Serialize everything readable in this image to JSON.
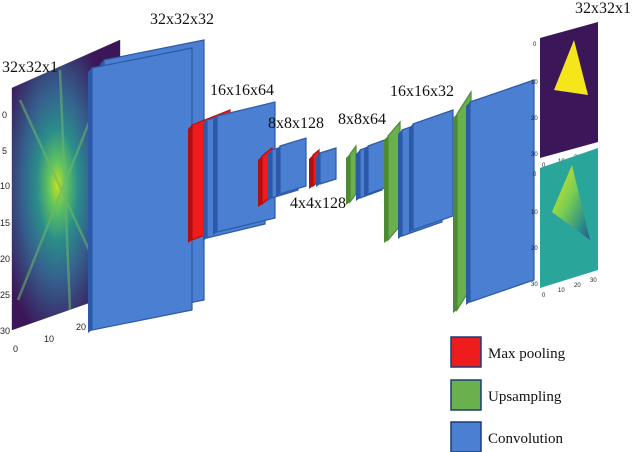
{
  "colors": {
    "maxpool": "#ee1c1c",
    "upsample": "#6ab04c",
    "conv": "#4a7fd1",
    "conv_edge": "#2d5aa8",
    "upsample_edge": "#4e8a36",
    "maxpool_edge": "#b30f0f",
    "heatmap_bg": "#3b1658",
    "triangle": "#f4e61b",
    "pred_bg": "#2aa59a"
  },
  "labels": {
    "input": "32x32x1",
    "enc1": "32x32x32",
    "enc2": "16x16x64",
    "enc3": "8x8x128",
    "bottleneck": "4x4x128",
    "dec1": "8x8x64",
    "dec2": "16x16x32",
    "output": "32x32x1"
  },
  "input_axis": {
    "y_ticks": [
      "0",
      "5",
      "10",
      "15",
      "20",
      "25",
      "30"
    ],
    "x_ticks": [
      "0",
      "10",
      "20"
    ]
  },
  "output_axis": {
    "y_ticks": [
      "0",
      "10",
      "20",
      "30"
    ],
    "x_ticks": [
      "0",
      "10",
      "20",
      "30"
    ]
  },
  "legend": [
    {
      "label": "Max pooling",
      "color_key": "maxpool"
    },
    {
      "label": "Upsampling",
      "color_key": "upsample"
    },
    {
      "label": "Convolution",
      "color_key": "conv"
    }
  ]
}
